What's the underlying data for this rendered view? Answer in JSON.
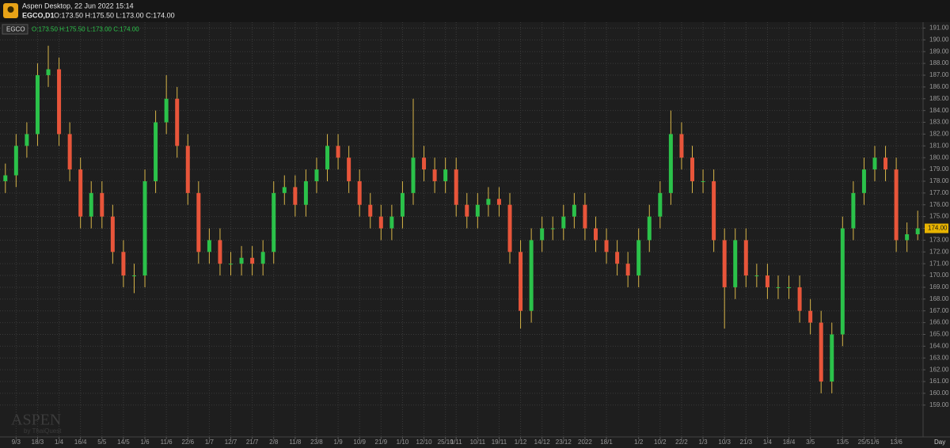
{
  "window_title": "Aspen Desktop, 22 Jun 2022 15:14",
  "symbol_timeframe": "EGCO,D1",
  "ohlc_text": "O:173.50 H:175.50 L:173.00 C:174.00",
  "watermark": {
    "brand": "ASPEN",
    "byline": "by ThaiQuest"
  },
  "chart_data": {
    "type": "candlestick",
    "legend_label": "EGCO",
    "timeframe_label": "Day",
    "categories": [
      null,
      "9/3",
      null,
      "18/3",
      null,
      "1/4",
      null,
      "16/4",
      null,
      "5/5",
      null,
      "14/5",
      null,
      "1/6",
      null,
      "11/6",
      null,
      "22/6",
      null,
      "1/7",
      null,
      "12/7",
      null,
      "21/7",
      null,
      "2/8",
      null,
      "11/8",
      null,
      "23/8",
      null,
      "1/9",
      null,
      "10/9",
      null,
      "21/9",
      null,
      "1/10",
      null,
      "12/10",
      null,
      "25/10",
      "1/11",
      null,
      "10/11",
      null,
      "19/11",
      null,
      "1/12",
      null,
      "14/12",
      null,
      "23/12",
      null,
      "2022",
      null,
      "18/1",
      null,
      null,
      "1/2",
      null,
      "10/2",
      null,
      "22/2",
      null,
      "1/3",
      null,
      "10/3",
      null,
      "21/3",
      null,
      "1/4",
      null,
      "18/4",
      null,
      "3/5",
      null,
      null,
      "13/5",
      null,
      "25/5",
      "1/6",
      null,
      "13/6",
      null,
      null
    ],
    "open": [
      178,
      178.5,
      181,
      182,
      187,
      187.5,
      182,
      179,
      175,
      177,
      175,
      172,
      170,
      170,
      178,
      183,
      185,
      181,
      177,
      172,
      173,
      171,
      171,
      171.5,
      171,
      172,
      177,
      177.5,
      176,
      178,
      179,
      181,
      180,
      178,
      176,
      175,
      174,
      175,
      177,
      180,
      179,
      178,
      179,
      176,
      175,
      176,
      176.5,
      176,
      172,
      167,
      173,
      174,
      174,
      175,
      176,
      174,
      173,
      172,
      171,
      170,
      173,
      175,
      177,
      182,
      180,
      178,
      178,
      173,
      169,
      173,
      170,
      170,
      169,
      169,
      169,
      167,
      166,
      161,
      165,
      174,
      177,
      179,
      180,
      179,
      173,
      173.5
    ],
    "high": [
      179.5,
      182,
      183,
      188,
      189.5,
      188.5,
      183,
      180,
      178,
      178,
      176,
      173,
      171,
      179,
      184,
      187,
      186,
      182,
      178,
      174,
      174,
      172,
      172.5,
      172.5,
      173,
      178,
      178.5,
      178.5,
      179,
      180,
      182,
      182,
      181,
      179,
      177,
      176,
      176,
      178,
      185,
      181,
      180,
      180,
      180,
      177,
      177,
      177.5,
      177.5,
      177,
      173,
      174,
      175,
      175,
      176,
      177,
      177,
      175,
      174,
      173,
      172,
      174,
      176,
      178,
      184,
      183,
      181,
      179,
      179,
      174,
      174,
      174,
      171,
      171,
      170,
      170,
      170,
      168,
      167,
      166,
      175,
      178,
      180,
      181,
      181,
      180,
      174.5,
      175.5
    ],
    "low": [
      177,
      177.5,
      180,
      181,
      186,
      181,
      178,
      174,
      174,
      174,
      171,
      169,
      168.5,
      169,
      177,
      182,
      180,
      176,
      171,
      171,
      170,
      170,
      170,
      170,
      170,
      171,
      176,
      175,
      175,
      177,
      178,
      179,
      177,
      175,
      174,
      173,
      173,
      174,
      176,
      178,
      177,
      177,
      175,
      174,
      174,
      175,
      175,
      171,
      165.5,
      166,
      172,
      173,
      173,
      174,
      173,
      172,
      171,
      170,
      169,
      169,
      172,
      174,
      176,
      179,
      177,
      177,
      172,
      165.5,
      168,
      169,
      169,
      168,
      168,
      168,
      166,
      165,
      160,
      160,
      164,
      173,
      176,
      178,
      178,
      172,
      172,
      173
    ],
    "close": [
      178.5,
      181,
      182,
      187,
      187.5,
      182,
      179,
      175,
      177,
      175,
      172,
      170,
      170,
      178,
      183,
      185,
      181,
      177,
      172,
      173,
      171,
      171,
      171.5,
      171,
      172,
      177,
      177.5,
      176,
      178,
      179,
      181,
      180,
      178,
      176,
      175,
      174,
      175,
      177,
      180,
      179,
      178,
      179,
      176,
      175,
      176,
      176.5,
      176,
      172,
      167,
      173,
      174,
      174,
      175,
      176,
      174,
      173,
      172,
      171,
      170,
      173,
      175,
      177,
      182,
      180,
      178,
      178,
      173,
      169,
      173,
      170,
      170,
      169,
      169,
      169,
      167,
      166,
      161,
      165,
      174,
      177,
      179,
      180,
      179,
      173,
      173.5,
      174
    ],
    "up_color": "#2bc24a",
    "down_color": "#e8553a",
    "wick_color": "#d8b548",
    "ylim": [
      156.3,
      191.5
    ],
    "yticks": [
      {
        "value": 159,
        "label": "159.00"
      },
      {
        "value": 160,
        "label": "160.00"
      },
      {
        "value": 161,
        "label": "161.00"
      },
      {
        "value": 162,
        "label": "162.00"
      },
      {
        "value": 163,
        "label": "163.00"
      },
      {
        "value": 164,
        "label": "164.00"
      },
      {
        "value": 165,
        "label": "165.00"
      },
      {
        "value": 166,
        "label": "166.00"
      },
      {
        "value": 167,
        "label": "167.00"
      },
      {
        "value": 168,
        "label": "168.00"
      },
      {
        "value": 169,
        "label": "169.00"
      },
      {
        "value": 170,
        "label": "170.00"
      },
      {
        "value": 171,
        "label": "171.00"
      },
      {
        "value": 172,
        "label": "172.00"
      },
      {
        "value": 173,
        "label": "173.00"
      },
      {
        "value": 174,
        "label": "174.00"
      },
      {
        "value": 175,
        "label": "175.00"
      },
      {
        "value": 176,
        "label": "176.00"
      },
      {
        "value": 177,
        "label": "177.00"
      },
      {
        "value": 178,
        "label": "178.00"
      },
      {
        "value": 179,
        "label": "179.00"
      },
      {
        "value": 180,
        "label": "180.00"
      },
      {
        "value": 181,
        "label": "181.00"
      },
      {
        "value": 182,
        "label": "182.00"
      },
      {
        "value": 183,
        "label": "183.00"
      },
      {
        "value": 184,
        "label": "184.00"
      },
      {
        "value": 185,
        "label": "185.00"
      },
      {
        "value": 186,
        "label": "186.00"
      },
      {
        "value": 187,
        "label": "187.00"
      },
      {
        "value": 188,
        "label": "188.00"
      },
      {
        "value": 189,
        "label": "189.00"
      },
      {
        "value": 190,
        "label": "190.00"
      },
      {
        "value": 191,
        "label": "191.00"
      }
    ],
    "grid": true,
    "last_price": {
      "value": 174,
      "label": "174.00"
    }
  }
}
